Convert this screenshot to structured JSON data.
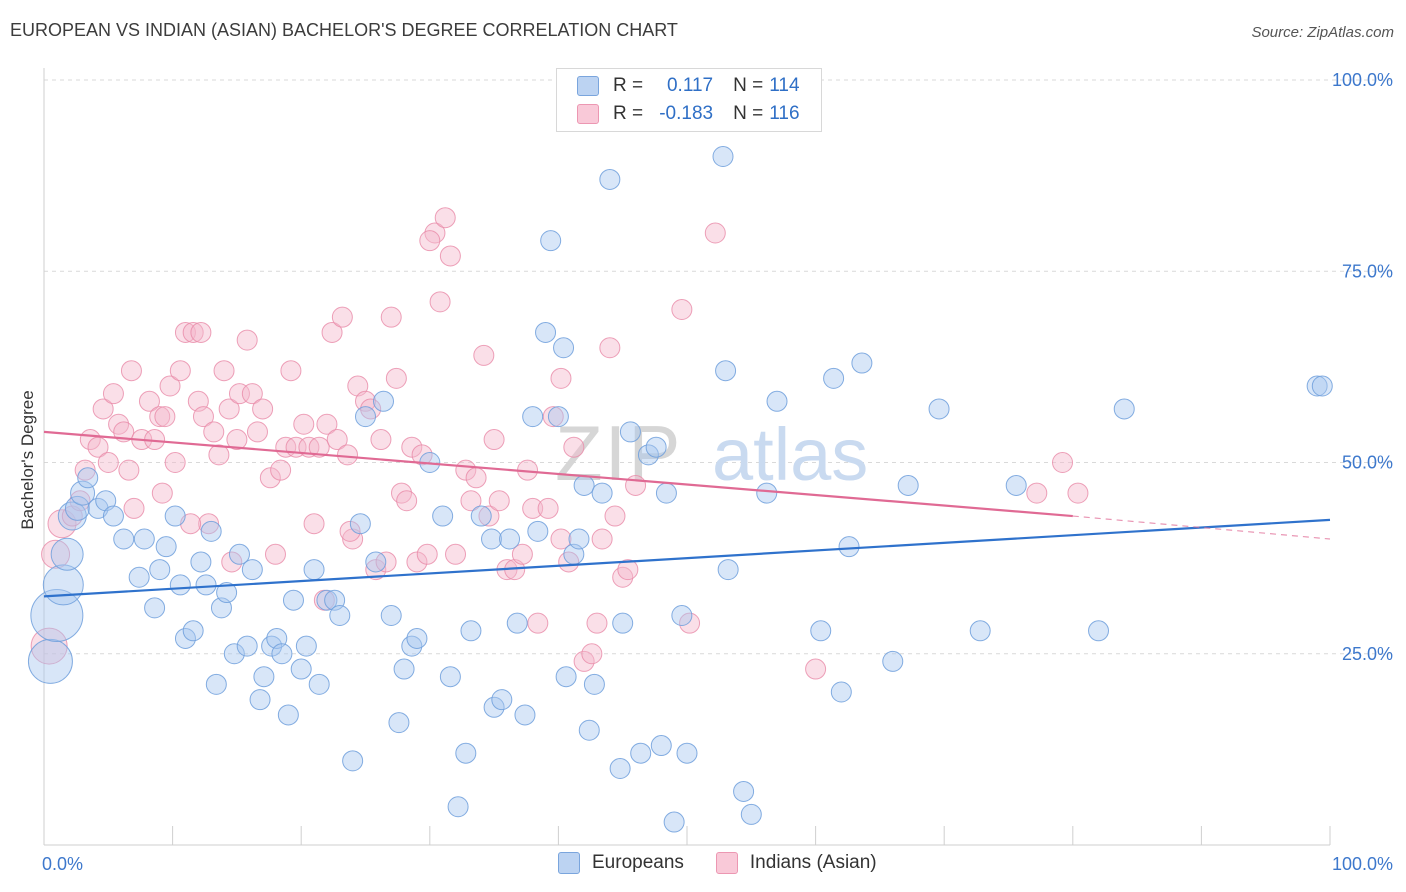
{
  "header": {
    "title": "EUROPEAN VS INDIAN (ASIAN) BACHELOR'S DEGREE CORRELATION CHART",
    "source": "Source: ZipAtlas.com"
  },
  "watermark": {
    "zip": "ZIP",
    "atlas": "atlas"
  },
  "legend": {
    "series1": {
      "r_label": "R = ",
      "r_value": "0.117",
      "n_label": "N = ",
      "n_value": "114"
    },
    "series2": {
      "r_label": "R = ",
      "r_value": "-0.183",
      "n_label": "N = ",
      "n_value": "116"
    }
  },
  "bottom_legend": {
    "series1": "Europeans",
    "series2": "Indians (Asian)"
  },
  "colors": {
    "blue_fill": "#a9c8ef",
    "blue_stroke": "#6f9fdc",
    "blue_line": "#2f72cc",
    "pink_fill": "#f5b8cb",
    "pink_stroke": "#e98aa8",
    "pink_line": "#e06a94",
    "tick_label": "#3d78cc",
    "grid": "#d9d9d9"
  },
  "chart_data": {
    "type": "scatter",
    "xlabel": "",
    "ylabel": "Bachelor's Degree",
    "xlim": [
      0,
      100
    ],
    "ylim": [
      0,
      100
    ],
    "x_tick_labels": [
      "0.0%",
      "100.0%"
    ],
    "y_ticks": [
      25,
      50,
      75,
      100
    ],
    "y_tick_labels": [
      "25.0%",
      "50.0%",
      "75.0%",
      "100.0%"
    ],
    "grid": true,
    "legend_position": "top-center",
    "series": [
      {
        "name": "Europeans",
        "r": 0.117,
        "n": 114,
        "trend": {
          "x": [
            0,
            100
          ],
          "y": [
            32.5,
            42.5
          ]
        },
        "points": [
          [
            0.5,
            24,
            22
          ],
          [
            1.0,
            30,
            26
          ],
          [
            1.5,
            34,
            20
          ],
          [
            1.8,
            38,
            16
          ],
          [
            2.2,
            43,
            14
          ],
          [
            2.6,
            44,
            12
          ],
          [
            3.0,
            46,
            12
          ],
          [
            3.4,
            48,
            10
          ],
          [
            4.2,
            44,
            10
          ],
          [
            4.8,
            45,
            10
          ],
          [
            5.4,
            43,
            10
          ],
          [
            6.2,
            40,
            10
          ],
          [
            7.4,
            35,
            10
          ],
          [
            7.8,
            40,
            10
          ],
          [
            8.6,
            31,
            10
          ],
          [
            9.0,
            36,
            10
          ],
          [
            9.5,
            39,
            10
          ],
          [
            10.2,
            43,
            10
          ],
          [
            10.6,
            34,
            10
          ],
          [
            11.0,
            27,
            10
          ],
          [
            11.6,
            28,
            10
          ],
          [
            12.2,
            37,
            10
          ],
          [
            12.6,
            34,
            10
          ],
          [
            13.0,
            41,
            10
          ],
          [
            13.4,
            21,
            10
          ],
          [
            13.8,
            31,
            10
          ],
          [
            14.2,
            33,
            10
          ],
          [
            14.8,
            25,
            10
          ],
          [
            15.2,
            38,
            10
          ],
          [
            15.8,
            26,
            10
          ],
          [
            16.2,
            36,
            10
          ],
          [
            16.8,
            19,
            10
          ],
          [
            17.1,
            22,
            10
          ],
          [
            17.7,
            26,
            10
          ],
          [
            18.1,
            27,
            10
          ],
          [
            18.5,
            25,
            10
          ],
          [
            19.0,
            17,
            10
          ],
          [
            19.4,
            32,
            10
          ],
          [
            20.0,
            23,
            10
          ],
          [
            20.4,
            26,
            10
          ],
          [
            21.0,
            36,
            10
          ],
          [
            21.4,
            21,
            10
          ],
          [
            22.0,
            32,
            10
          ],
          [
            22.6,
            32,
            10
          ],
          [
            23.0,
            30,
            10
          ],
          [
            24.0,
            11,
            10
          ],
          [
            24.6,
            42,
            10
          ],
          [
            25.0,
            56,
            10
          ],
          [
            25.8,
            37,
            10
          ],
          [
            26.4,
            58,
            10
          ],
          [
            27.0,
            30,
            10
          ],
          [
            27.6,
            16,
            10
          ],
          [
            28.0,
            23,
            10
          ],
          [
            28.6,
            26,
            10
          ],
          [
            29.0,
            27,
            10
          ],
          [
            30.0,
            50,
            10
          ],
          [
            31.0,
            43,
            10
          ],
          [
            31.6,
            22,
            10
          ],
          [
            32.2,
            5,
            10
          ],
          [
            32.8,
            12,
            10
          ],
          [
            33.2,
            28,
            10
          ],
          [
            34.0,
            43,
            10
          ],
          [
            34.8,
            40,
            10
          ],
          [
            35.0,
            18,
            10
          ],
          [
            35.6,
            19,
            10
          ],
          [
            36.2,
            40,
            10
          ],
          [
            36.8,
            29,
            10
          ],
          [
            37.4,
            17,
            10
          ],
          [
            38.0,
            56,
            10
          ],
          [
            38.4,
            41,
            10
          ],
          [
            39.0,
            67,
            10
          ],
          [
            39.4,
            79,
            10
          ],
          [
            40.0,
            56,
            10
          ],
          [
            40.4,
            65,
            10
          ],
          [
            40.6,
            22,
            10
          ],
          [
            41.2,
            38,
            10
          ],
          [
            41.6,
            40,
            10
          ],
          [
            42.0,
            47,
            10
          ],
          [
            42.4,
            15,
            10
          ],
          [
            42.8,
            21,
            10
          ],
          [
            43.4,
            46,
            10
          ],
          [
            44.0,
            87,
            10
          ],
          [
            44.8,
            10,
            10
          ],
          [
            45.0,
            29,
            10
          ],
          [
            45.6,
            54,
            10
          ],
          [
            46.4,
            12,
            10
          ],
          [
            47.0,
            51,
            10
          ],
          [
            47.6,
            52,
            10
          ],
          [
            48.0,
            13,
            10
          ],
          [
            48.4,
            46,
            10
          ],
          [
            49.0,
            3,
            10
          ],
          [
            49.6,
            30,
            10
          ],
          [
            50.0,
            12,
            10
          ],
          [
            52.8,
            90,
            10
          ],
          [
            53.0,
            62,
            10
          ],
          [
            53.2,
            36,
            10
          ],
          [
            54.4,
            7,
            10
          ],
          [
            55.0,
            4,
            10
          ],
          [
            56.2,
            46,
            10
          ],
          [
            57.0,
            58,
            10
          ],
          [
            60.4,
            28,
            10
          ],
          [
            61.4,
            61,
            10
          ],
          [
            62.0,
            20,
            10
          ],
          [
            62.6,
            39,
            10
          ],
          [
            63.6,
            63,
            10
          ],
          [
            66.0,
            24,
            10
          ],
          [
            67.2,
            47,
            10
          ],
          [
            69.6,
            57,
            10
          ],
          [
            72.8,
            28,
            10
          ],
          [
            75.6,
            47,
            10
          ],
          [
            82.0,
            28,
            10
          ],
          [
            84.0,
            57,
            10
          ],
          [
            99.0,
            60,
            10
          ],
          [
            99.4,
            60,
            10
          ]
        ]
      },
      {
        "name": "Indians (Asian)",
        "r": -0.183,
        "n": 116,
        "trend": {
          "x": [
            0,
            80
          ],
          "y": [
            54,
            43
          ],
          "dash_to": {
            "x": 100,
            "y": 40
          }
        },
        "points": [
          [
            0.4,
            26,
            18
          ],
          [
            0.9,
            38,
            14
          ],
          [
            1.4,
            42,
            14
          ],
          [
            2.2,
            43,
            10
          ],
          [
            2.8,
            45,
            10
          ],
          [
            3.2,
            49,
            10
          ],
          [
            3.6,
            53,
            10
          ],
          [
            4.2,
            52,
            10
          ],
          [
            4.6,
            57,
            10
          ],
          [
            5.0,
            50,
            10
          ],
          [
            5.4,
            59,
            10
          ],
          [
            5.8,
            55,
            10
          ],
          [
            6.2,
            54,
            10
          ],
          [
            6.6,
            49,
            10
          ],
          [
            7.0,
            44,
            10
          ],
          [
            7.6,
            53,
            10
          ],
          [
            8.2,
            58,
            10
          ],
          [
            8.6,
            53,
            10
          ],
          [
            9.0,
            56,
            10
          ],
          [
            9.4,
            56,
            10
          ],
          [
            9.8,
            60,
            10
          ],
          [
            10.2,
            50,
            10
          ],
          [
            10.6,
            62,
            10
          ],
          [
            11.0,
            67,
            10
          ],
          [
            11.6,
            67,
            10
          ],
          [
            12.0,
            58,
            10
          ],
          [
            12.4,
            56,
            10
          ],
          [
            12.8,
            42,
            10
          ],
          [
            13.2,
            54,
            10
          ],
          [
            13.6,
            51,
            10
          ],
          [
            14.0,
            62,
            10
          ],
          [
            14.4,
            57,
            10
          ],
          [
            15.0,
            53,
            10
          ],
          [
            15.2,
            59,
            10
          ],
          [
            15.8,
            66,
            10
          ],
          [
            16.2,
            59,
            10
          ],
          [
            16.6,
            54,
            10
          ],
          [
            17.0,
            57,
            10
          ],
          [
            17.6,
            48,
            10
          ],
          [
            18.0,
            38,
            10
          ],
          [
            18.4,
            49,
            10
          ],
          [
            18.8,
            52,
            10
          ],
          [
            19.2,
            62,
            10
          ],
          [
            19.6,
            52,
            10
          ],
          [
            20.2,
            55,
            10
          ],
          [
            20.6,
            52,
            10
          ],
          [
            21.0,
            42,
            10
          ],
          [
            21.4,
            52,
            10
          ],
          [
            21.8,
            32,
            10
          ],
          [
            22.0,
            55,
            10
          ],
          [
            22.4,
            67,
            10
          ],
          [
            22.8,
            53,
            10
          ],
          [
            23.2,
            69,
            10
          ],
          [
            23.6,
            51,
            10
          ],
          [
            24.0,
            40,
            10
          ],
          [
            24.4,
            60,
            10
          ],
          [
            25.0,
            58,
            10
          ],
          [
            25.4,
            57,
            10
          ],
          [
            25.8,
            36,
            10
          ],
          [
            26.2,
            53,
            10
          ],
          [
            26.6,
            37,
            10
          ],
          [
            27.0,
            69,
            10
          ],
          [
            27.4,
            61,
            10
          ],
          [
            27.8,
            46,
            10
          ],
          [
            28.2,
            45,
            10
          ],
          [
            28.6,
            52,
            10
          ],
          [
            29.0,
            37,
            10
          ],
          [
            29.4,
            51,
            10
          ],
          [
            29.8,
            38,
            10
          ],
          [
            30.4,
            80,
            10
          ],
          [
            30.8,
            71,
            10
          ],
          [
            31.2,
            82,
            10
          ],
          [
            31.6,
            77,
            10
          ],
          [
            32.0,
            38,
            10
          ],
          [
            32.8,
            49,
            10
          ],
          [
            33.2,
            45,
            10
          ],
          [
            33.6,
            48,
            10
          ],
          [
            34.2,
            64,
            10
          ],
          [
            34.6,
            43,
            10
          ],
          [
            35.0,
            53,
            10
          ],
          [
            35.4,
            45,
            10
          ],
          [
            36.0,
            36,
            10
          ],
          [
            36.6,
            36,
            10
          ],
          [
            37.2,
            38,
            10
          ],
          [
            37.6,
            49,
            10
          ],
          [
            38.0,
            44,
            10
          ],
          [
            38.4,
            29,
            10
          ],
          [
            39.2,
            44,
            10
          ],
          [
            39.6,
            56,
            10
          ],
          [
            40.2,
            61,
            10
          ],
          [
            40.8,
            37,
            10
          ],
          [
            41.2,
            52,
            10
          ],
          [
            42.0,
            24,
            10
          ],
          [
            42.6,
            25,
            10
          ],
          [
            43.0,
            29,
            10
          ],
          [
            43.4,
            40,
            10
          ],
          [
            44.0,
            65,
            10
          ],
          [
            44.4,
            43,
            10
          ],
          [
            45.0,
            35,
            10
          ],
          [
            45.4,
            36,
            10
          ],
          [
            46.0,
            47,
            10
          ],
          [
            49.6,
            70,
            10
          ],
          [
            50.2,
            29,
            10
          ],
          [
            52.2,
            80,
            10
          ],
          [
            60.0,
            23,
            10
          ],
          [
            77.2,
            46,
            10
          ],
          [
            79.2,
            50,
            10
          ],
          [
            80.4,
            46,
            10
          ],
          [
            30.0,
            79,
            10
          ],
          [
            14.6,
            37,
            10
          ],
          [
            12.2,
            67,
            10
          ],
          [
            9.2,
            46,
            10
          ],
          [
            6.8,
            62,
            10
          ],
          [
            23.8,
            41,
            10
          ],
          [
            40.2,
            40,
            10
          ],
          [
            11.4,
            42,
            10
          ]
        ]
      }
    ]
  }
}
